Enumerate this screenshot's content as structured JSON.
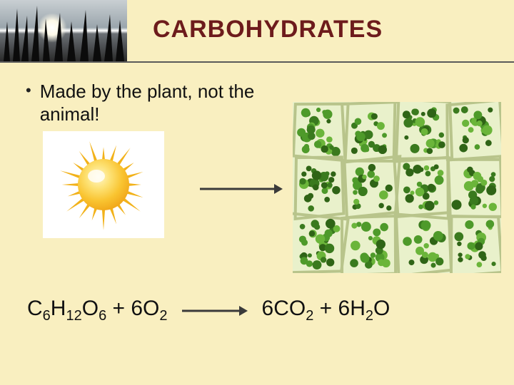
{
  "title": "CARBOHYDRATES",
  "bullet": {
    "marker": "•",
    "text": "Made by the plant, not the animal!"
  },
  "sun_illustration": {
    "body_gradient": [
      "#fff7c8",
      "#fde173",
      "#f9c431",
      "#f0a417"
    ],
    "ray_color": "#f2b21a",
    "highlight": "#ffffff"
  },
  "cells_illustration": {
    "background": "#e9f1cb",
    "wall_color": "#b8c48b",
    "chloroplast_colors": [
      "#3a7a1e",
      "#4e9a2a",
      "#6bb53a",
      "#2f6416"
    ],
    "cell_count_x": 4,
    "cell_count_y": 3
  },
  "arrows": {
    "stroke": "#3a3a3a",
    "stroke_width": 3
  },
  "equation": {
    "left": [
      {
        "base": "C",
        "sub": "6"
      },
      {
        "base": "H",
        "sub": "12"
      },
      {
        "base": "O",
        "sub": "6"
      },
      {
        "base": " + 6O",
        "sub": "2"
      }
    ],
    "right": [
      {
        "base": "6CO",
        "sub": "2"
      },
      {
        "base": " + 6H",
        "sub": "2"
      },
      {
        "base": "O",
        "sub": ""
      }
    ]
  },
  "colors": {
    "slide_bg": "#f9efc0",
    "title_color": "#6d1b1c",
    "rule_color": "#5a5a5a",
    "text_color": "#111111"
  }
}
